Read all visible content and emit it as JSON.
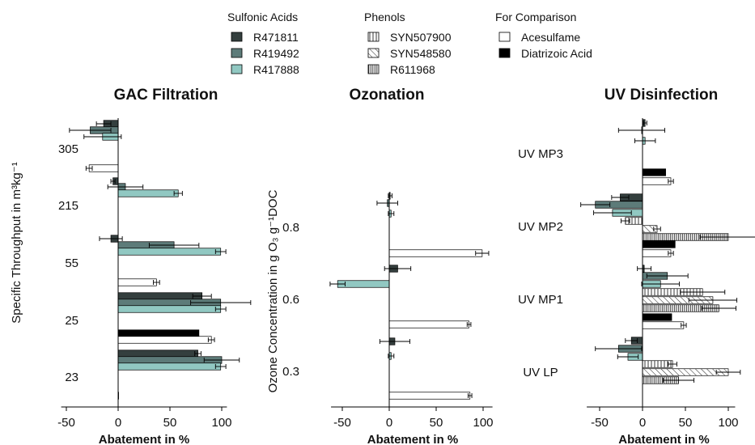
{
  "legend": {
    "groups": [
      {
        "title": "Sulfonic Acids",
        "items": [
          {
            "label": "R471811",
            "key": "R471811"
          },
          {
            "label": "R419492",
            "key": "R419492"
          },
          {
            "label": "R417888",
            "key": "R417888"
          }
        ]
      },
      {
        "title": "Phenols",
        "items": [
          {
            "label": "SYN507900",
            "key": "SYN507900"
          },
          {
            "label": "SYN548580",
            "key": "SYN548580"
          },
          {
            "label": "R611968",
            "key": "R611968"
          }
        ]
      },
      {
        "title": "For Comparison",
        "items": [
          {
            "label": "Acesulfame",
            "key": "Acesulfame"
          },
          {
            "label": "Diatrizoic Acid",
            "key": "Diatrizoic"
          }
        ]
      }
    ]
  },
  "styles": {
    "R471811": {
      "fill": "#343f3e",
      "pattern": "solid"
    },
    "R419492": {
      "fill": "#5d7b79",
      "pattern": "solid"
    },
    "R417888": {
      "fill": "#91c8c2",
      "pattern": "solid"
    },
    "SYN507900": {
      "fill": "#ffffff",
      "pattern": "vertical-lines"
    },
    "SYN548580": {
      "fill": "#ffffff",
      "pattern": "diagonal-lines"
    },
    "R611968": {
      "fill": "#ffffff",
      "pattern": "dense-vertical-lines"
    },
    "Acesulfame": {
      "fill": "#ffffff",
      "pattern": "solid"
    },
    "Diatrizoic": {
      "fill": "#000000",
      "pattern": "solid"
    }
  },
  "chart_data": [
    {
      "type": "bar",
      "orientation": "horizontal",
      "title": "GAC Filtration",
      "xlabel": "Abatement in %",
      "ylabel": "Specific Throughput in  m³kg⁻¹",
      "xlim": [
        -55,
        105
      ],
      "xticks": [
        -50,
        0,
        50,
        100
      ],
      "groups": [
        {
          "label": "305",
          "bars": [
            {
              "key": "R471811",
              "value": -14,
              "err": 7
            },
            {
              "key": "R419492",
              "value": -27,
              "err": 20
            },
            {
              "key": "R417888",
              "value": -15,
              "err": 18
            },
            {
              "key": "Acesulfame",
              "value": -28,
              "err": 3
            }
          ]
        },
        {
          "label": "215",
          "bars": [
            {
              "key": "R471811",
              "value": -5,
              "err": 2
            },
            {
              "key": "R419492",
              "value": 7,
              "err": 17
            },
            {
              "key": "R417888",
              "value": 58,
              "err": 4
            }
          ]
        },
        {
          "label": "55",
          "bars": [
            {
              "key": "R471811",
              "value": -7,
              "err": 11
            },
            {
              "key": "R419492",
              "value": 54,
              "err": 24
            },
            {
              "key": "R417888",
              "value": 99,
              "err": 5
            },
            {
              "key": "Acesulfame",
              "value": 37,
              "err": 3
            }
          ]
        },
        {
          "label": "25",
          "bars": [
            {
              "key": "R471811",
              "value": 81,
              "err": 9
            },
            {
              "key": "R419492",
              "value": 99,
              "err": 29
            },
            {
              "key": "R417888",
              "value": 99,
              "err": 5
            },
            {
              "key": "Diatrizoic",
              "value": 78,
              "err": 0
            },
            {
              "key": "Acesulfame",
              "value": 90,
              "err": 3
            }
          ]
        },
        {
          "label": "23",
          "bars": [
            {
              "key": "R471811",
              "value": 77,
              "err": 3
            },
            {
              "key": "R419492",
              "value": 100,
              "err": 17
            },
            {
              "key": "R417888",
              "value": 99,
              "err": 5
            },
            {
              "key": "Acesulfame",
              "value": 0,
              "err": 0
            }
          ]
        }
      ]
    },
    {
      "type": "bar",
      "orientation": "horizontal",
      "title": "Ozonation",
      "xlabel": "Abatement in %",
      "ylabel": "Ozone Concentration in  g O₃ g⁻¹DOC",
      "xlim": [
        -62,
        110
      ],
      "xticks": [
        -50,
        0,
        50,
        100
      ],
      "groups": [
        {
          "label": "0.8",
          "bars": [
            {
              "key": "R471811",
              "value": 1,
              "err": 2
            },
            {
              "key": "R419492",
              "value": -2,
              "err": 11
            },
            {
              "key": "R417888",
              "value": 2,
              "err": 3
            },
            {
              "key": "Acesulfame",
              "value": 99,
              "err": 7
            }
          ]
        },
        {
          "label": "0.6",
          "bars": [
            {
              "key": "R471811",
              "value": 9,
              "err": 14
            },
            {
              "key": "R417888",
              "value": -55,
              "err": 8
            },
            {
              "key": "Acesulfame",
              "value": 85,
              "err": 2
            }
          ]
        },
        {
          "label": "0.3",
          "bars": [
            {
              "key": "R471811",
              "value": 6,
              "err": 16
            },
            {
              "key": "R417888",
              "value": 2,
              "err": 3
            },
            {
              "key": "Acesulfame",
              "value": 86,
              "err": 2
            }
          ]
        }
      ]
    },
    {
      "type": "bar",
      "orientation": "horizontal",
      "title": "UV Disinfection",
      "xlabel": "Abatement in %",
      "ylabel": "",
      "xlim": [
        -65,
        108
      ],
      "xticks": [
        -50,
        0,
        50,
        100
      ],
      "groups": [
        {
          "label": "UV MP3",
          "bars": [
            {
              "key": "R471811",
              "value": 3,
              "err": 2
            },
            {
              "key": "R419492",
              "value": -1,
              "err": 27
            },
            {
              "key": "R417888",
              "value": 3,
              "err": 12
            },
            {
              "key": "Diatrizoic",
              "value": 27,
              "err": 0
            },
            {
              "key": "Acesulfame",
              "value": 33,
              "err": 3
            }
          ]
        },
        {
          "label": "UV MP2",
          "bars": [
            {
              "key": "R471811",
              "value": -26,
              "err": 10
            },
            {
              "key": "R419492",
              "value": -55,
              "err": 17
            },
            {
              "key": "R417888",
              "value": -35,
              "err": 22
            },
            {
              "key": "SYN507900",
              "value": -20,
              "err": 5
            },
            {
              "key": "SYN548580",
              "value": 17,
              "err": 4
            },
            {
              "key": "R611968",
              "value": 100,
              "err": 33
            },
            {
              "key": "Diatrizoic",
              "value": 38,
              "err": 0
            },
            {
              "key": "Acesulfame",
              "value": 33,
              "err": 3
            }
          ]
        },
        {
          "label": "UV MP1",
          "bars": [
            {
              "key": "R471811",
              "value": 2,
              "err": 8
            },
            {
              "key": "R419492",
              "value": 29,
              "err": 24
            },
            {
              "key": "R417888",
              "value": 21,
              "err": 22
            },
            {
              "key": "SYN507900",
              "value": 70,
              "err": 26
            },
            {
              "key": "SYN548580",
              "value": 82,
              "err": 28
            },
            {
              "key": "R611968",
              "value": 89,
              "err": 20
            },
            {
              "key": "Diatrizoic",
              "value": 34,
              "err": 0
            },
            {
              "key": "Acesulfame",
              "value": 48,
              "err": 3
            }
          ]
        },
        {
          "label": "UV LP",
          "bars": [
            {
              "key": "R471811",
              "value": -13,
              "err": 7
            },
            {
              "key": "R419492",
              "value": -28,
              "err": 27
            },
            {
              "key": "R417888",
              "value": -17,
              "err": 12
            },
            {
              "key": "SYN507900",
              "value": 35,
              "err": 5
            },
            {
              "key": "SYN548580",
              "value": 100,
              "err": 14
            },
            {
              "key": "R611968",
              "value": 42,
              "err": 18
            }
          ]
        }
      ]
    }
  ]
}
